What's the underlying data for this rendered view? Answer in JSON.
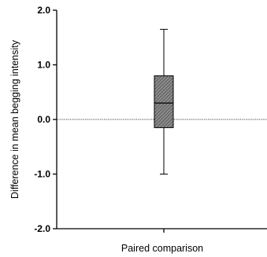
{
  "chart_data": {
    "type": "box",
    "title": "",
    "xlabel": "Paired comparison",
    "ylabel": "Difference in mean begging intensity",
    "ylim": [
      -2.0,
      2.0
    ],
    "yticks": [
      {
        "value": 2.0,
        "label": "2.0"
      },
      {
        "value": 1.0,
        "label": "1.0"
      },
      {
        "value": 0.0,
        "label": "0.0"
      },
      {
        "value": -1.0,
        "label": "-1.0"
      },
      {
        "value": -2.0,
        "label": "-2.0"
      }
    ],
    "reference_line": {
      "value": 0.0,
      "style": "dotted"
    },
    "grid": false,
    "legend": "none",
    "series": [
      {
        "min": -1.0,
        "q1": -0.15,
        "median": 0.3,
        "q3": 0.8,
        "max": 1.65
      }
    ],
    "colors": {
      "box_fill": "#8c8c8c",
      "box_hatch": "#3a3a3a",
      "axis": "#000000"
    }
  }
}
